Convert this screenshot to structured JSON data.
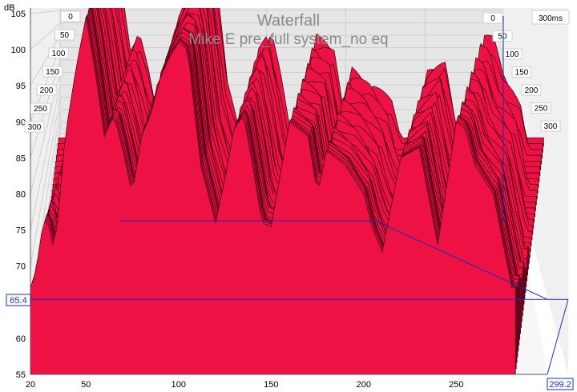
{
  "chart_data": {
    "type": "area",
    "title": "Waterfall",
    "subtitle": "Mike E pre_full system_no eq",
    "ylabel": "dB",
    "xlabel": "",
    "x_ticks": [
      20,
      50,
      100,
      150,
      200,
      250
    ],
    "y_ticks": [
      55,
      60,
      65,
      70,
      75,
      80,
      85,
      90,
      95,
      100,
      105
    ],
    "ylim": [
      55,
      106
    ],
    "xlim": [
      20,
      299.2
    ],
    "time_ticks_left": [
      "0",
      "50",
      "100",
      "150",
      "200",
      "250",
      "300"
    ],
    "time_ticks_right": [
      "0",
      "50",
      "100",
      "150",
      "200",
      "250",
      "300"
    ],
    "time_max_label": "300ms",
    "cursor_y_label": "65.4",
    "cursor_x_label": "299.2",
    "cursor_y_value": 65.4,
    "slice_count": 40,
    "front_slice": {
      "x": [
        20,
        22,
        24,
        26,
        28,
        30,
        32,
        34,
        36,
        38,
        40,
        45,
        50,
        55,
        60,
        65,
        70,
        75,
        80,
        85,
        90,
        95,
        100,
        105,
        108,
        112,
        116,
        120,
        125,
        130,
        135,
        140,
        145,
        150,
        160,
        170,
        175,
        180,
        190,
        200,
        205,
        210,
        220,
        230,
        240,
        250,
        255,
        260,
        270,
        280
      ],
      "y": [
        67,
        68.5,
        71,
        74.5,
        76.5,
        75.5,
        73,
        75,
        80,
        86,
        90,
        98,
        104.5,
        97,
        88,
        91,
        86,
        80,
        88,
        91,
        96,
        99,
        101,
        100,
        93,
        84,
        80,
        76,
        82,
        89,
        91,
        84,
        76,
        75.5,
        90,
        88,
        80,
        86,
        84,
        80,
        75,
        72,
        85,
        86.5,
        73,
        90,
        89,
        84,
        80,
        67
      ]
    }
  },
  "colors": {
    "fill": "#ee1144",
    "contour": "#3a0010",
    "grid": "#cfcfcf",
    "floor": "#e8e8e8",
    "cursor": "#1a2fb0",
    "title": "#8a8a8a"
  }
}
